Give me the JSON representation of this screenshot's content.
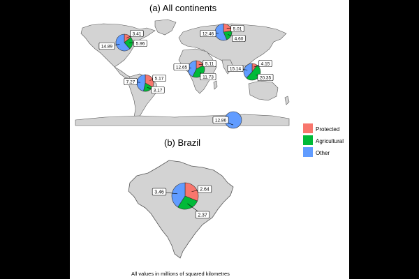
{
  "titles": {
    "panel_a": "(a) All continents",
    "panel_b": "(b) Brazil"
  },
  "caption": "All values in millions of squared kilometres",
  "legend": {
    "items": [
      {
        "key": "protected",
        "label": "Protected",
        "color": "#F8766D"
      },
      {
        "key": "agricultural",
        "label": "Agricultural",
        "color": "#00BA38"
      },
      {
        "key": "other",
        "label": "Other",
        "color": "#619CFF"
      }
    ]
  },
  "map_colors": {
    "land": "#d3d3d3",
    "border": "#555555",
    "background": "#ffffff"
  },
  "regions": [
    {
      "name": "north-america",
      "protected": 3.41,
      "agricultural": 5.96,
      "other": 14.89,
      "labels": {
        "protected": "3.41",
        "agricultural": "5.96",
        "other": "14.89"
      }
    },
    {
      "name": "south-america",
      "protected": 5.17,
      "agricultural": 3.17,
      "other": 7.27,
      "labels": {
        "protected": "5.17",
        "agricultural": "3.17",
        "other": "7.27"
      }
    },
    {
      "name": "europe-russia",
      "protected": 5.01,
      "agricultural": 4.6,
      "other": 12.46,
      "labels": {
        "protected": "5.01",
        "agricultural": "4.60",
        "other": "12.46"
      }
    },
    {
      "name": "africa",
      "protected": 5.11,
      "agricultural": 11.73,
      "other": 12.65,
      "labels": {
        "protected": "5.11",
        "agricultural": "11.73",
        "other": "12.65"
      }
    },
    {
      "name": "asia",
      "protected": 4.15,
      "agricultural": 20.35,
      "other": 15.14,
      "labels": {
        "protected": "4.15",
        "agricultural": "20.35",
        "other": "15.14"
      }
    },
    {
      "name": "antarctica",
      "protected": 0,
      "agricultural": 0,
      "other": 12.86,
      "labels": {
        "protected": "",
        "agricultural": "",
        "other": "12.86"
      }
    }
  ],
  "brazil": {
    "protected": 2.64,
    "agricultural": 2.37,
    "other": 3.46,
    "labels": {
      "protected": "2.64",
      "agricultural": "2.37",
      "other": "3.46"
    }
  }
}
